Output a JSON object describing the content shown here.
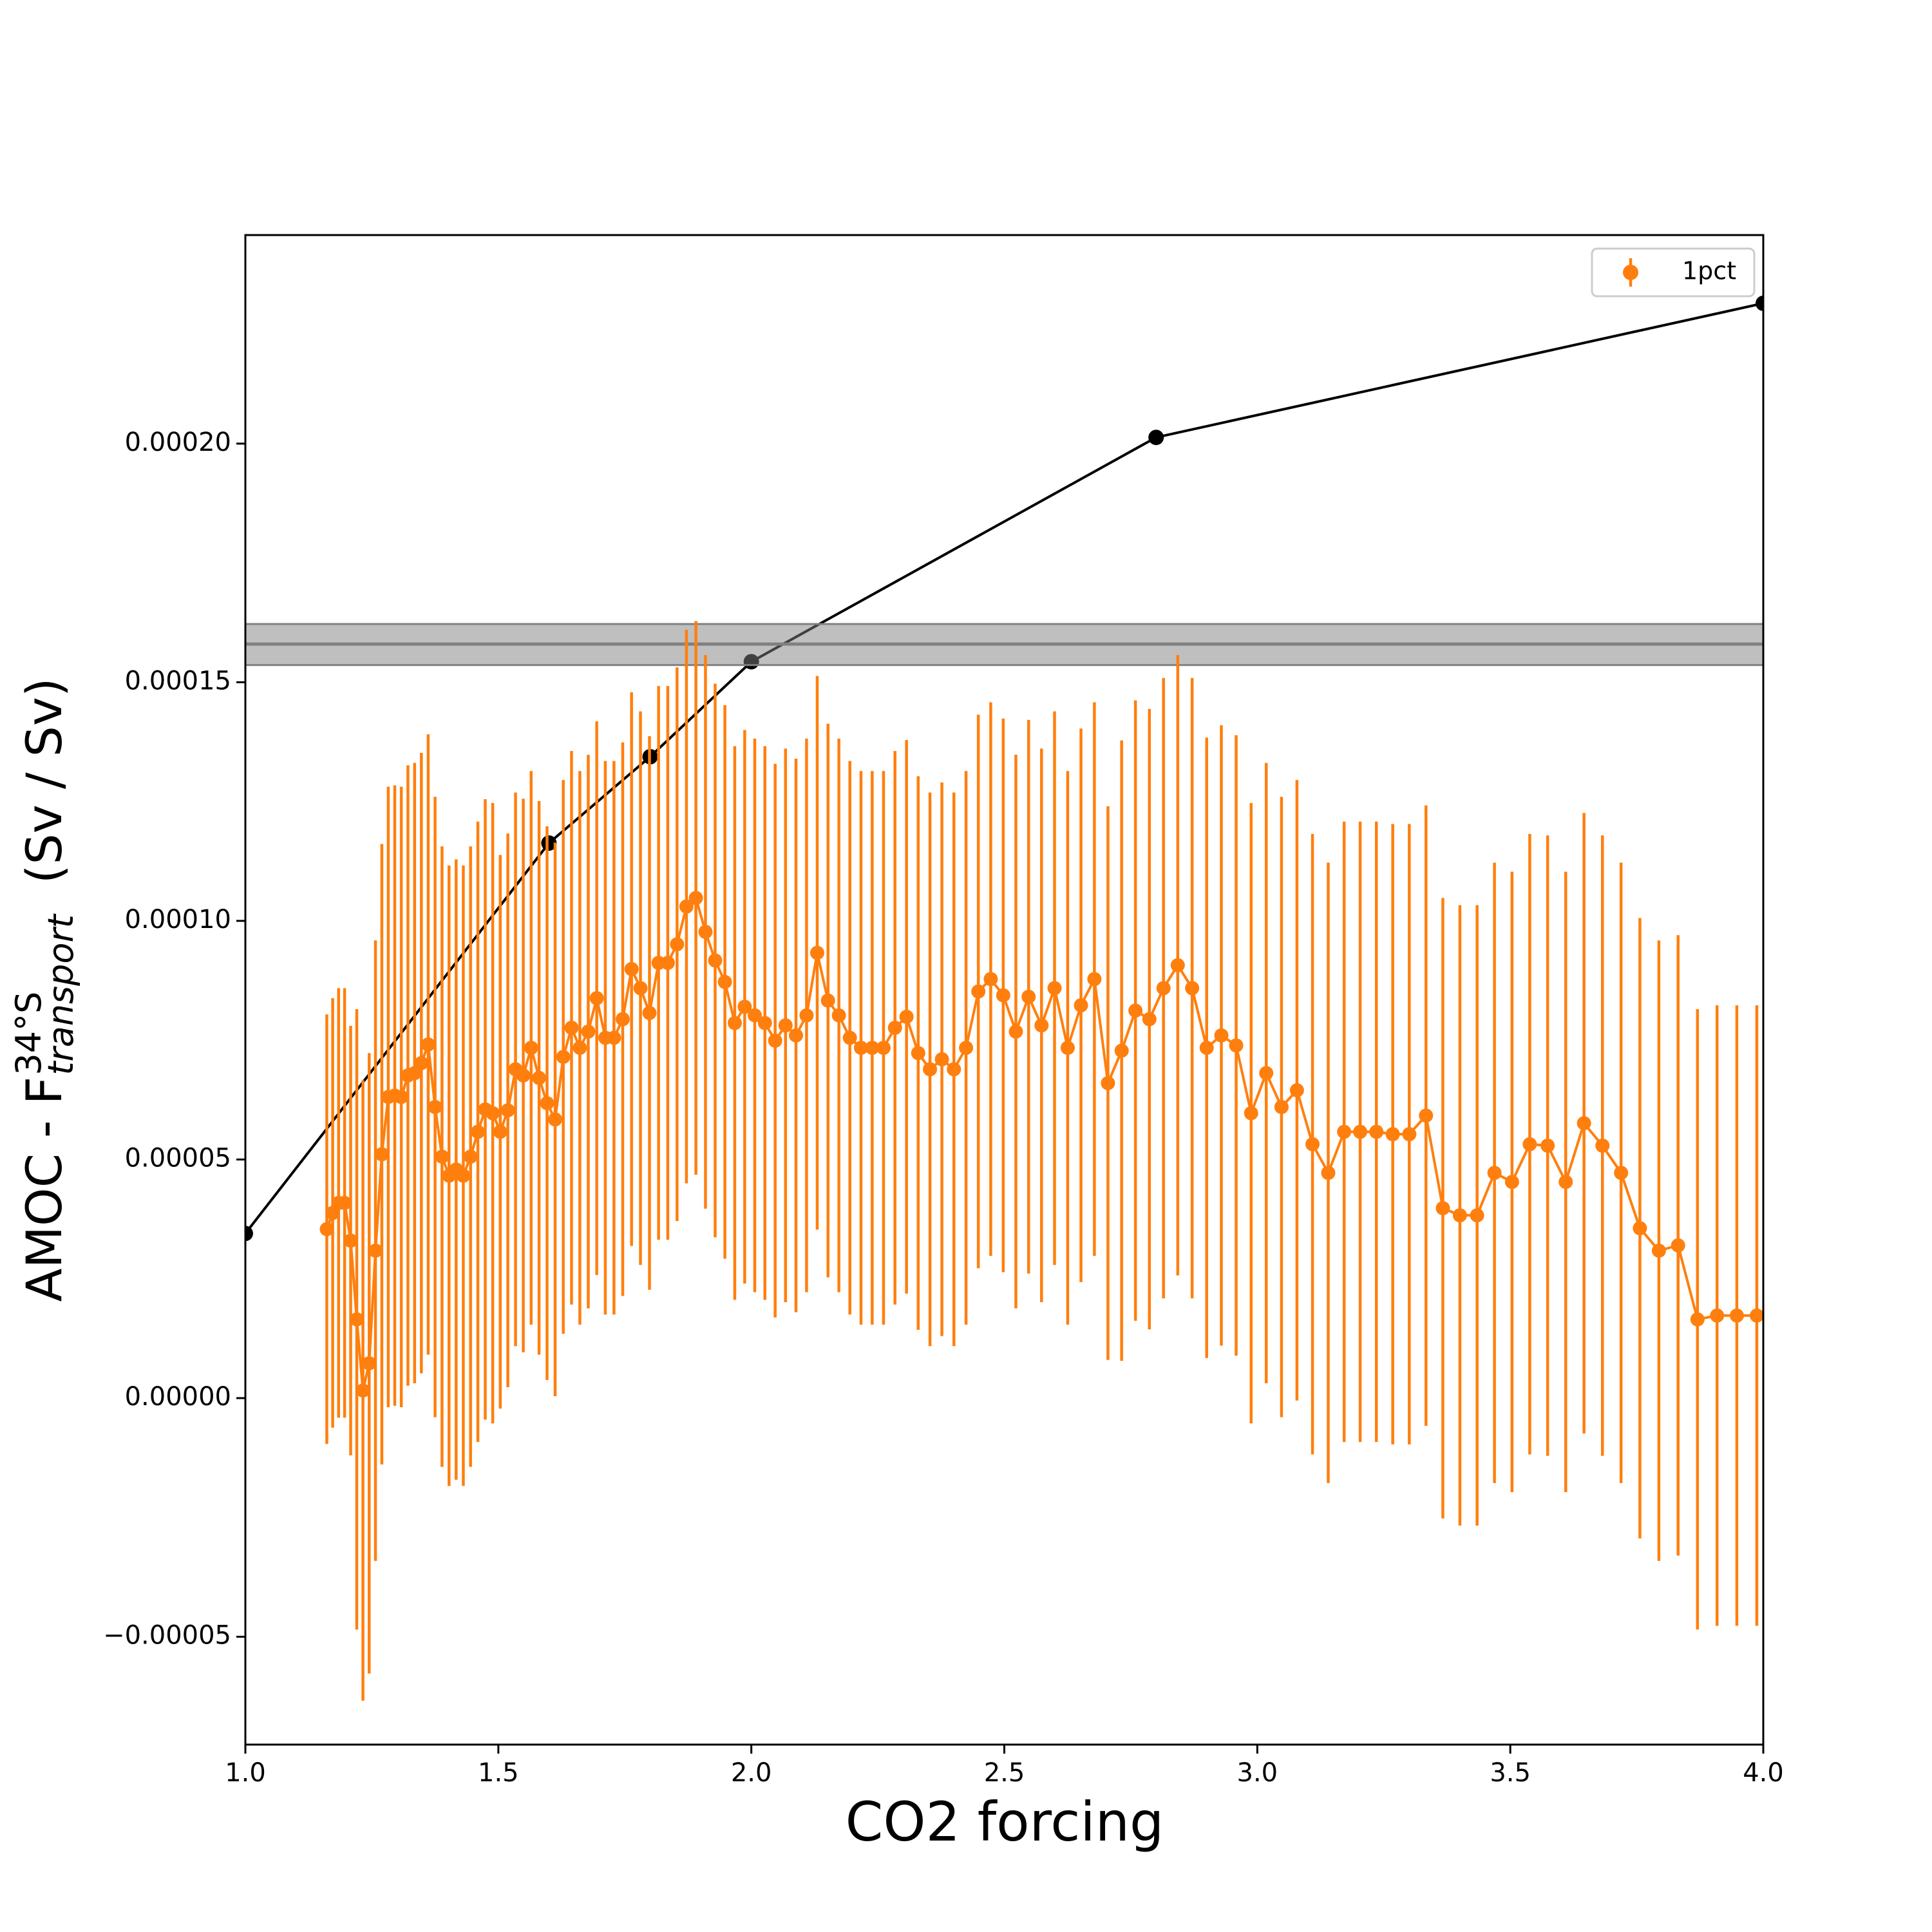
{
  "chart_data": {
    "type": "line",
    "xlabel": "CO2 forcing",
    "ylabel": {
      "main": "AMOC - F",
      "sup": "34°S",
      "sub": "transport",
      "unit": "(Sv / Sv)"
    },
    "xlim": [
      1.0,
      4.0
    ],
    "ylim": [
      -7.26e-05,
      0.0002437
    ],
    "xticks": [
      {
        "value": 1.0,
        "label": "1.0"
      },
      {
        "value": 1.5,
        "label": "1.5"
      },
      {
        "value": 2.0,
        "label": "2.0"
      },
      {
        "value": 2.5,
        "label": "2.5"
      },
      {
        "value": 3.0,
        "label": "3.0"
      },
      {
        "value": 3.5,
        "label": "3.5"
      },
      {
        "value": 4.0,
        "label": "4.0"
      }
    ],
    "yticks": [
      {
        "value": -5e-05,
        "label": "−0.00005"
      },
      {
        "value": 0,
        "label": "0.00000"
      },
      {
        "value": 5e-05,
        "label": "0.00005"
      },
      {
        "value": 0.0001,
        "label": "0.00010"
      },
      {
        "value": 0.00015,
        "label": "0.00015"
      },
      {
        "value": 0.0002,
        "label": "0.00020"
      }
    ],
    "legend": "upper right",
    "hband": {
      "center": 0.000158,
      "lower": 0.0001536,
      "upper": 0.0001622,
      "color": "#808080"
    },
    "series": [
      {
        "color": "#000000",
        "x": [
          1.0,
          1.6,
          1.8,
          2.0,
          2.8,
          4.0
        ],
        "values": [
          3.45e-05,
          0.0001163,
          0.0001344,
          0.0001543,
          0.0002013,
          0.0002294
        ]
      },
      {
        "name": "1pct",
        "color": "#ff7f0e",
        "x": [
          1.16097,
          1.17258,
          1.1843,
          1.19615,
          1.20811,
          1.22019,
          1.23239,
          1.24472,
          1.25716,
          1.26973,
          1.28243,
          1.29526,
          1.30821,
          1.32129,
          1.3345,
          1.34785,
          1.36133,
          1.37494,
          1.38869,
          1.40258,
          1.4166,
          1.43077,
          1.44508,
          1.45953,
          1.47412,
          1.48886,
          1.50375,
          1.51879,
          1.53398,
          1.54932,
          1.56481,
          1.58046,
          1.59626,
          1.61223,
          1.62835,
          1.64463,
          1.66108,
          1.67769,
          1.69447,
          1.71141,
          1.72852,
          1.74581,
          1.76327,
          1.7809,
          1.79871,
          1.8167,
          1.83486,
          1.85321,
          1.87174,
          1.89046,
          1.90937,
          1.92846,
          1.94774,
          1.96722,
          1.98689,
          2.00676,
          2.02683,
          2.0471,
          2.06757,
          2.08825,
          2.10913,
          2.13022,
          2.15152,
          2.17304,
          2.19477,
          2.21672,
          2.23888,
          2.26127,
          2.28388,
          2.30672,
          2.32979,
          2.35309,
          2.37662,
          2.40038,
          2.42439,
          2.44863,
          2.47312,
          2.49785,
          2.52283,
          2.54806,
          2.57354,
          2.59927,
          2.62527,
          2.65152,
          2.67803,
          2.70481,
          2.73186,
          2.75918,
          2.78677,
          2.81464,
          2.84279,
          2.87121,
          2.89993,
          2.92893,
          2.95822,
          2.9878,
          3.01768,
          3.04785,
          3.07833,
          3.10912,
          3.14021,
          3.17161,
          3.20333,
          3.23536,
          3.26771,
          3.30039,
          3.33339,
          3.36673,
          3.4004,
          3.4344,
          3.46875,
          3.50343,
          3.53847,
          3.57385,
          3.60959,
          3.64569,
          3.68214,
          3.71896,
          3.75615,
          3.79371,
          3.83165,
          3.86997,
          3.90867,
          3.94775,
          3.98723
        ],
        "values": [
          3.54e-05,
          3.88e-05,
          4.09e-05,
          4.09e-05,
          3.3e-05,
          1.65e-05,
          1.6e-06,
          7.3e-06,
          3.09e-05,
          5.11e-05,
          6.31e-05,
          6.34e-05,
          6.31e-05,
          6.76e-05,
          6.81e-05,
          7.02e-05,
          7.41e-05,
          6.1e-05,
          5.06e-05,
          4.66e-05,
          4.79e-05,
          4.66e-05,
          5.06e-05,
          5.58e-05,
          6.05e-05,
          5.97e-05,
          5.58e-05,
          6.03e-05,
          6.89e-05,
          6.76e-05,
          7.34e-05,
          6.71e-05,
          6.18e-05,
          5.84e-05,
          7.15e-05,
          7.76e-05,
          7.34e-05,
          7.68e-05,
          8.38e-05,
          7.55e-05,
          7.55e-05,
          7.94e-05,
          8.99e-05,
          8.59e-05,
          8.07e-05,
          9.12e-05,
          9.12e-05,
          9.51e-05,
          0.000103,
          0.0001048,
          9.77e-05,
          9.17e-05,
          8.72e-05,
          7.86e-05,
          8.2e-05,
          8.02e-05,
          7.86e-05,
          7.49e-05,
          7.81e-05,
          7.6e-05,
          8.02e-05,
          9.33e-05,
          8.33e-05,
          8.02e-05,
          7.55e-05,
          7.34e-05,
          7.34e-05,
          7.34e-05,
          7.76e-05,
          7.99e-05,
          7.23e-05,
          6.89e-05,
          7.1e-05,
          6.89e-05,
          7.34e-05,
          8.52e-05,
          8.78e-05,
          8.44e-05,
          7.68e-05,
          8.41e-05,
          7.81e-05,
          8.59e-05,
          7.34e-05,
          8.23e-05,
          8.78e-05,
          6.6e-05,
          7.28e-05,
          8.12e-05,
          7.94e-05,
          8.59e-05,
          9.07e-05,
          8.59e-05,
          7.34e-05,
          7.6e-05,
          7.39e-05,
          5.97e-05,
          6.81e-05,
          6.1e-05,
          6.45e-05,
          5.32e-05,
          4.72e-05,
          5.58e-05,
          5.58e-05,
          5.58e-05,
          5.53e-05,
          5.53e-05,
          5.92e-05,
          3.98e-05,
          3.83e-05,
          3.83e-05,
          4.72e-05,
          4.53e-05,
          5.32e-05,
          5.29e-05,
          4.53e-05,
          5.76e-05,
          5.29e-05,
          4.72e-05,
          3.56e-05,
          3.09e-05,
          3.2e-05,
          1.65e-05,
          1.73e-05,
          1.73e-05,
          1.73e-05
        ],
        "yerr": [
          4.5e-05,
          4.5e-05,
          4.5e-05,
          4.5e-05,
          4.5e-05,
          6.5e-05,
          6.5e-05,
          6.5e-05,
          6.5e-05,
          6.5e-05,
          6.5e-05,
          6.5e-05,
          6.5e-05,
          6.5e-05,
          6.5e-05,
          6.5e-05,
          6.5e-05,
          6.5e-05,
          6.5e-05,
          6.5e-05,
          6.5e-05,
          6.5e-05,
          6.5e-05,
          6.5e-05,
          6.5e-05,
          6.5e-05,
          5.8e-05,
          5.8e-05,
          5.8e-05,
          5.8e-05,
          5.8e-05,
          5.8e-05,
          5.8e-05,
          5.8e-05,
          5.8e-05,
          5.8e-05,
          5.8e-05,
          5.8e-05,
          5.8e-05,
          5.8e-05,
          5.8e-05,
          5.8e-05,
          5.8e-05,
          5.8e-05,
          5.8e-05,
          5.8e-05,
          5.8e-05,
          5.8e-05,
          5.8e-05,
          5.8e-05,
          5.8e-05,
          5.8e-05,
          5.8e-05,
          5.8e-05,
          5.8e-05,
          5.8e-05,
          5.8e-05,
          5.8e-05,
          5.8e-05,
          5.8e-05,
          5.8e-05,
          5.8e-05,
          5.8e-05,
          5.8e-05,
          5.8e-05,
          5.8e-05,
          5.8e-05,
          5.8e-05,
          5.8e-05,
          5.8e-05,
          5.8e-05,
          5.8e-05,
          5.8e-05,
          5.8e-05,
          5.8e-05,
          5.8e-05,
          5.8e-05,
          5.8e-05,
          5.8e-05,
          5.8e-05,
          5.8e-05,
          5.8e-05,
          5.8e-05,
          5.8e-05,
          5.8e-05,
          5.8e-05,
          6.5e-05,
          6.5e-05,
          6.5e-05,
          6.5e-05,
          6.5e-05,
          6.5e-05,
          6.5e-05,
          6.5e-05,
          6.5e-05,
          6.5e-05,
          6.5e-05,
          6.5e-05,
          6.5e-05,
          6.5e-05,
          6.5e-05,
          6.5e-05,
          6.5e-05,
          6.5e-05,
          6.5e-05,
          6.5e-05,
          6.5e-05,
          6.5e-05,
          6.5e-05,
          6.5e-05,
          6.5e-05,
          6.5e-05,
          6.5e-05,
          6.5e-05,
          6.5e-05,
          6.5e-05,
          6.5e-05,
          6.5e-05,
          6.5e-05,
          6.5e-05,
          6.5e-05,
          6.5e-05,
          6.5e-05,
          6.5e-05,
          6.5e-05
        ]
      }
    ]
  }
}
